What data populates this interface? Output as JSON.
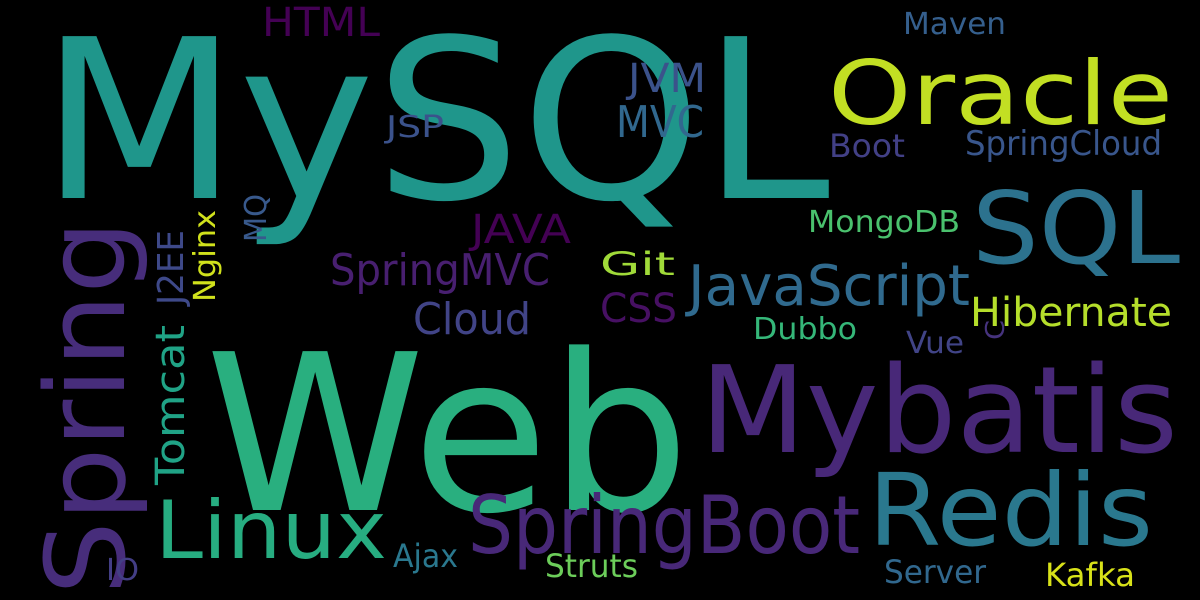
{
  "words": [
    {
      "text": "MySQL",
      "color": "#1f968b"
    },
    {
      "text": "Web",
      "color": "#29af7f"
    },
    {
      "text": "Oracle",
      "color": "#c2df23"
    },
    {
      "text": "SQL",
      "color": "#2c728e"
    },
    {
      "text": "Mybatis",
      "color": "#482878"
    },
    {
      "text": "Redis",
      "color": "#2a788e"
    },
    {
      "text": "Spring",
      "color": "#472d7b"
    },
    {
      "text": "SpringBoot",
      "color": "#482878"
    },
    {
      "text": "Linux",
      "color": "#27ad81"
    },
    {
      "text": "JavaScript",
      "color": "#306a8e"
    },
    {
      "text": "HTML",
      "color": "#440154"
    },
    {
      "text": "Maven",
      "color": "#355f8d"
    },
    {
      "text": "JVM",
      "color": "#3b528b"
    },
    {
      "text": "MVC",
      "color": "#31688e"
    },
    {
      "text": "JSP",
      "color": "#3b528b"
    },
    {
      "text": "Boot",
      "color": "#424086"
    },
    {
      "text": "SpringCloud",
      "color": "#39568c"
    },
    {
      "text": "MongoDB",
      "color": "#4ac16d"
    },
    {
      "text": "JAVA",
      "color": "#440154"
    },
    {
      "text": "SpringMVC",
      "color": "#481f70"
    },
    {
      "text": "Git",
      "color": "#a0da39"
    },
    {
      "text": "CSS",
      "color": "#471063"
    },
    {
      "text": "Cloud",
      "color": "#414487"
    },
    {
      "text": "Hibernate",
      "color": "#b5de2b"
    },
    {
      "text": "Dubbo",
      "color": "#35b779"
    },
    {
      "text": "Vue",
      "color": "#414487"
    },
    {
      "text": "C",
      "color": "#46337e"
    },
    {
      "text": "J2EE",
      "color": "#3e4989"
    },
    {
      "text": "Nginx",
      "color": "#d0e11c"
    },
    {
      "text": "MQ",
      "color": "#38598c"
    },
    {
      "text": "Tomcat",
      "color": "#20a386"
    },
    {
      "text": "IO",
      "color": "#433e85"
    },
    {
      "text": "Ajax",
      "color": "#2a788e"
    },
    {
      "text": "Struts",
      "color": "#6ccd5a"
    },
    {
      "text": "Server",
      "color": "#31688e"
    },
    {
      "text": "Kafka",
      "color": "#d8e219"
    }
  ]
}
